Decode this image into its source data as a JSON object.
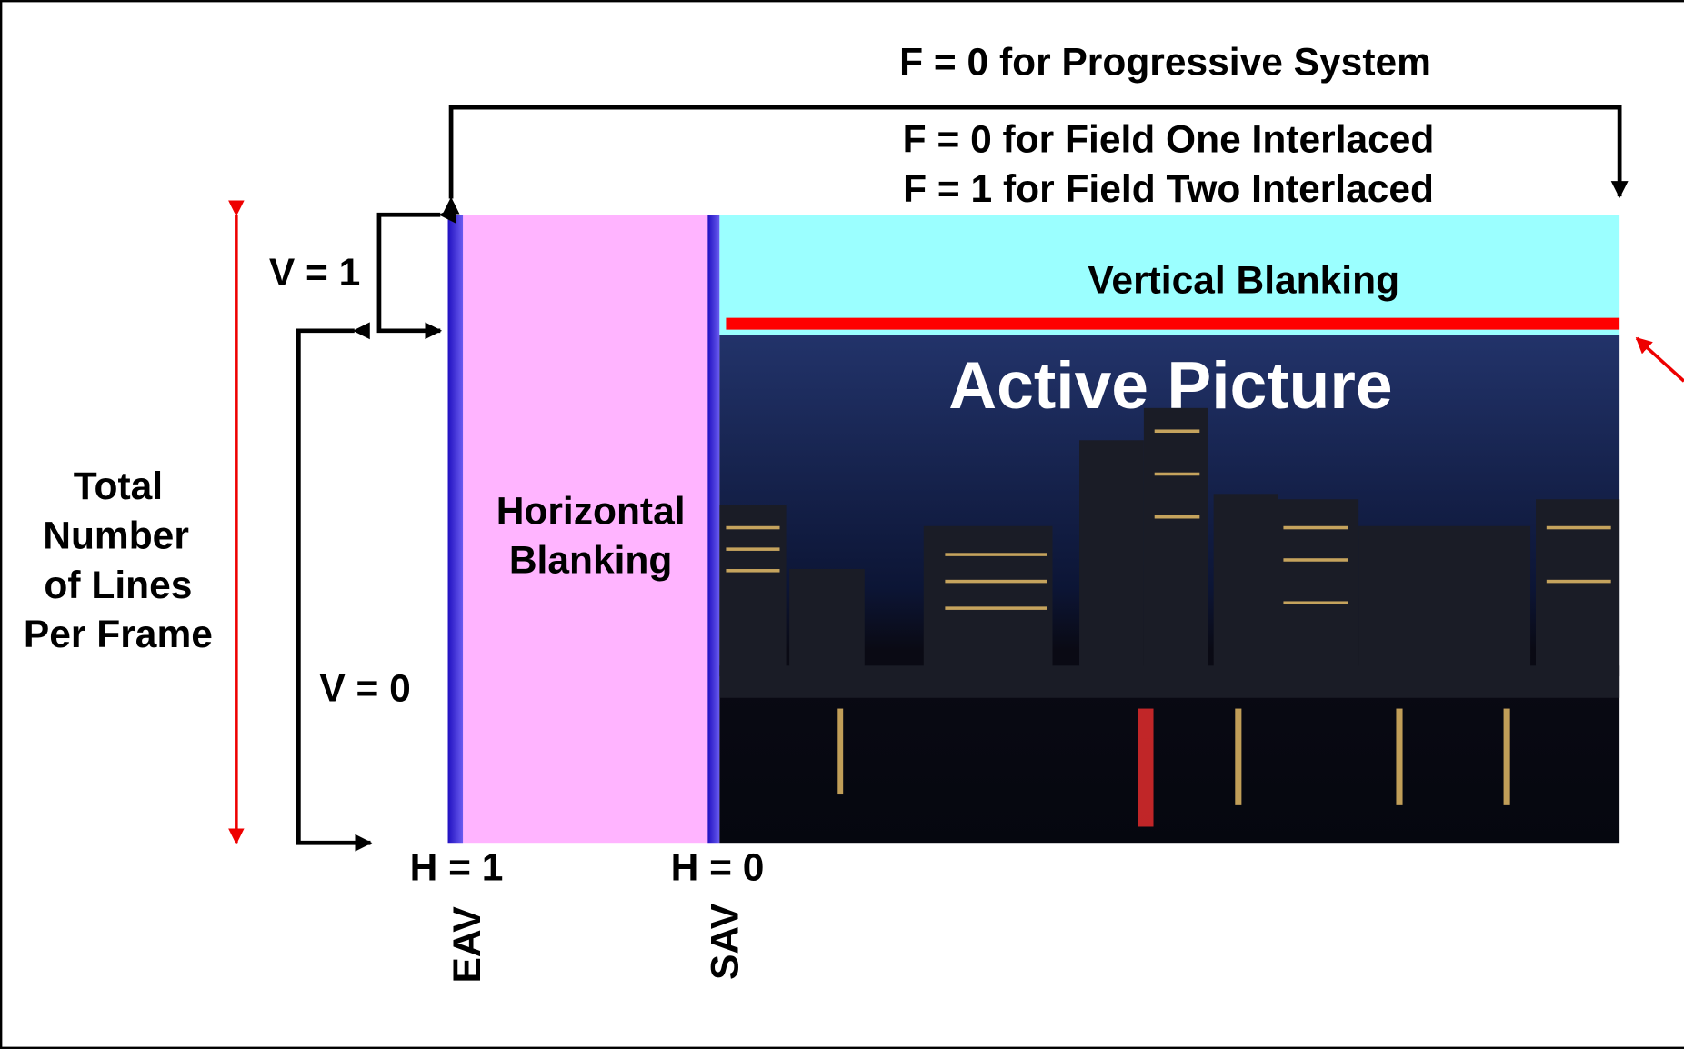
{
  "f_labels": [
    "F = 0 for Progressive System",
    "F = 0 for Field One Interlaced",
    "F = 1 for Field Two Interlaced"
  ],
  "v_labels": [
    "V = 1",
    "V = 0"
  ],
  "total_label": [
    "Total",
    "Number",
    "of Lines",
    "Per Frame"
  ],
  "horizontal_blanking": [
    "Horizontal",
    "Blanking"
  ],
  "vertical_blanking": "Vertical Blanking",
  "active_picture": "Active Picture",
  "h_labels": [
    "H = 1",
    "H = 0"
  ],
  "timing_refs": [
    "EAV",
    "SAV"
  ]
}
